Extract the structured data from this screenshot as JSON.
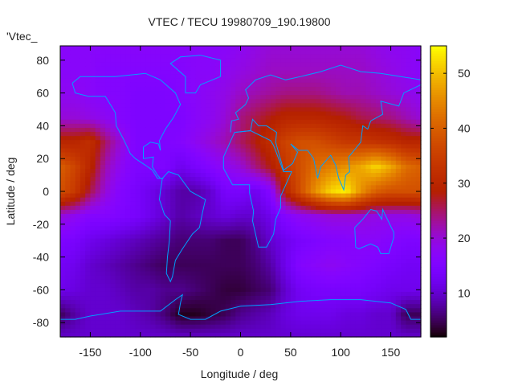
{
  "chart_data": {
    "type": "heatmap",
    "title": "VTEC / TECU 19980709_190.19800",
    "key_label": "'Vtec_",
    "xlabel": "Longitude / deg",
    "ylabel": "Latitude / deg",
    "xlim": [
      -180,
      180
    ],
    "ylim": [
      -88.75,
      88.75
    ],
    "cblim": [
      2,
      55
    ],
    "xticks": [
      -150,
      -100,
      -50,
      0,
      50,
      100,
      150
    ],
    "yticks": [
      80,
      60,
      40,
      20,
      0,
      -20,
      -40,
      -60,
      -80
    ],
    "cbticks": [
      10,
      20,
      30,
      40,
      50
    ],
    "coastline_color": "#00a0ff",
    "palette": "gnuplot rgbformulae 7,5,15 (black-blue-purple-red-orange-yellow)",
    "grid": {
      "lon": [
        -180,
        -165,
        -150,
        -135,
        -120,
        -105,
        -90,
        -75,
        -60,
        -45,
        -30,
        -15,
        0,
        15,
        30,
        45,
        60,
        75,
        90,
        105,
        120,
        135,
        150,
        165,
        180
      ],
      "lat": [
        90,
        75,
        60,
        45,
        30,
        15,
        0,
        -15,
        -30,
        -45,
        -60,
        -75,
        -90
      ],
      "values": [
        [
          17,
          17,
          17,
          17,
          17,
          17,
          17,
          17,
          17,
          17,
          17,
          17,
          18,
          19,
          20,
          20,
          20,
          20,
          20,
          20,
          20,
          19,
          18,
          18,
          17
        ],
        [
          17,
          17,
          17,
          16,
          16,
          16,
          16,
          16,
          16,
          17,
          17,
          18,
          19,
          20,
          21,
          21,
          21,
          21,
          21,
          21,
          21,
          20,
          19,
          18,
          17
        ],
        [
          18,
          18,
          17,
          16,
          16,
          15,
          15,
          15,
          16,
          17,
          18,
          19,
          21,
          22,
          23,
          24,
          24,
          24,
          23,
          22,
          22,
          21,
          20,
          19,
          18
        ],
        [
          20,
          20,
          19,
          18,
          16,
          15,
          15,
          15,
          15,
          17,
          18,
          20,
          24,
          26,
          28,
          30,
          30,
          30,
          29,
          28,
          26,
          25,
          24,
          22,
          20
        ],
        [
          30,
          30,
          32,
          25,
          20,
          15,
          15,
          15,
          16,
          18,
          20,
          22,
          25,
          28,
          32,
          36,
          38,
          38,
          36,
          34,
          34,
          33,
          32,
          30,
          30
        ],
        [
          40,
          36,
          30,
          22,
          18,
          15,
          15,
          15,
          12,
          14,
          16,
          18,
          20,
          24,
          28,
          34,
          38,
          42,
          44,
          46,
          48,
          52,
          48,
          42,
          40
        ],
        [
          38,
          34,
          26,
          20,
          16,
          14,
          12,
          10,
          8,
          8,
          10,
          14,
          14,
          12,
          16,
          30,
          38,
          46,
          52,
          54,
          46,
          40,
          38,
          38,
          38
        ],
        [
          20,
          18,
          16,
          16,
          15,
          14,
          12,
          10,
          8,
          9,
          10,
          11,
          10,
          10,
          12,
          16,
          18,
          19,
          20,
          20,
          20,
          19,
          19,
          19,
          20
        ],
        [
          15,
          14,
          12,
          11,
          10,
          9,
          8,
          7,
          6,
          6,
          6,
          5,
          5,
          7,
          10,
          12,
          14,
          15,
          16,
          16,
          17,
          17,
          16,
          15,
          15
        ],
        [
          13,
          12,
          10,
          9,
          8,
          7,
          6,
          5,
          5,
          5,
          5,
          5,
          5,
          6,
          8,
          12,
          16,
          17,
          18,
          17,
          16,
          15,
          14,
          13,
          13
        ],
        [
          12,
          11,
          10,
          10,
          9,
          8,
          8,
          7,
          7,
          6,
          5,
          4,
          4,
          5,
          6,
          10,
          13,
          14,
          14,
          14,
          14,
          13,
          12,
          12,
          12
        ],
        [
          5,
          8,
          10,
          10,
          10,
          9,
          8,
          6,
          3,
          3,
          4,
          5,
          7,
          8,
          9,
          11,
          12,
          12,
          12,
          11,
          11,
          10,
          10,
          5,
          5
        ],
        [
          10,
          10,
          10,
          10,
          10,
          10,
          10,
          10,
          10,
          10,
          10,
          10,
          10,
          10,
          10,
          10,
          10,
          10,
          10,
          10,
          10,
          10,
          10,
          10,
          10
        ]
      ]
    }
  }
}
